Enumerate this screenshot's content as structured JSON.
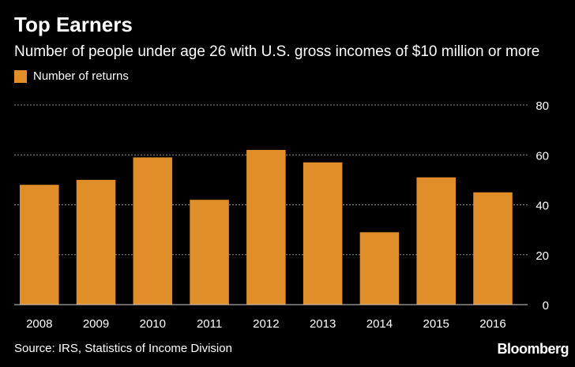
{
  "header": {
    "title": "Top Earners",
    "subtitle": "Number of people under age 26 with U.S. gross incomes of $10 million or more"
  },
  "footer": {
    "source": "Source: IRS, Statistics of Income Division",
    "brand": "Bloomberg"
  },
  "colors": {
    "background": "#000000",
    "bar": "#E08E2A",
    "grid": "#8a8a8a",
    "text": "#ffffff"
  },
  "chart_data": {
    "type": "bar",
    "title": "Top Earners",
    "subtitle": "Number of people under age 26 with U.S. gross incomes of $10 million or more",
    "categories": [
      "2008",
      "2009",
      "2010",
      "2011",
      "2012",
      "2013",
      "2014",
      "2015",
      "2016"
    ],
    "series": [
      {
        "name": "Number of returns",
        "values": [
          48,
          50,
          59,
          42,
          62,
          57,
          29,
          51,
          45
        ]
      }
    ],
    "xlabel": "",
    "ylabel": "",
    "ylim": [
      0,
      80
    ],
    "yticks": [
      0,
      20,
      40,
      60,
      80
    ],
    "y_axis_side": "right",
    "grid": true,
    "legend_position": "top-left"
  }
}
